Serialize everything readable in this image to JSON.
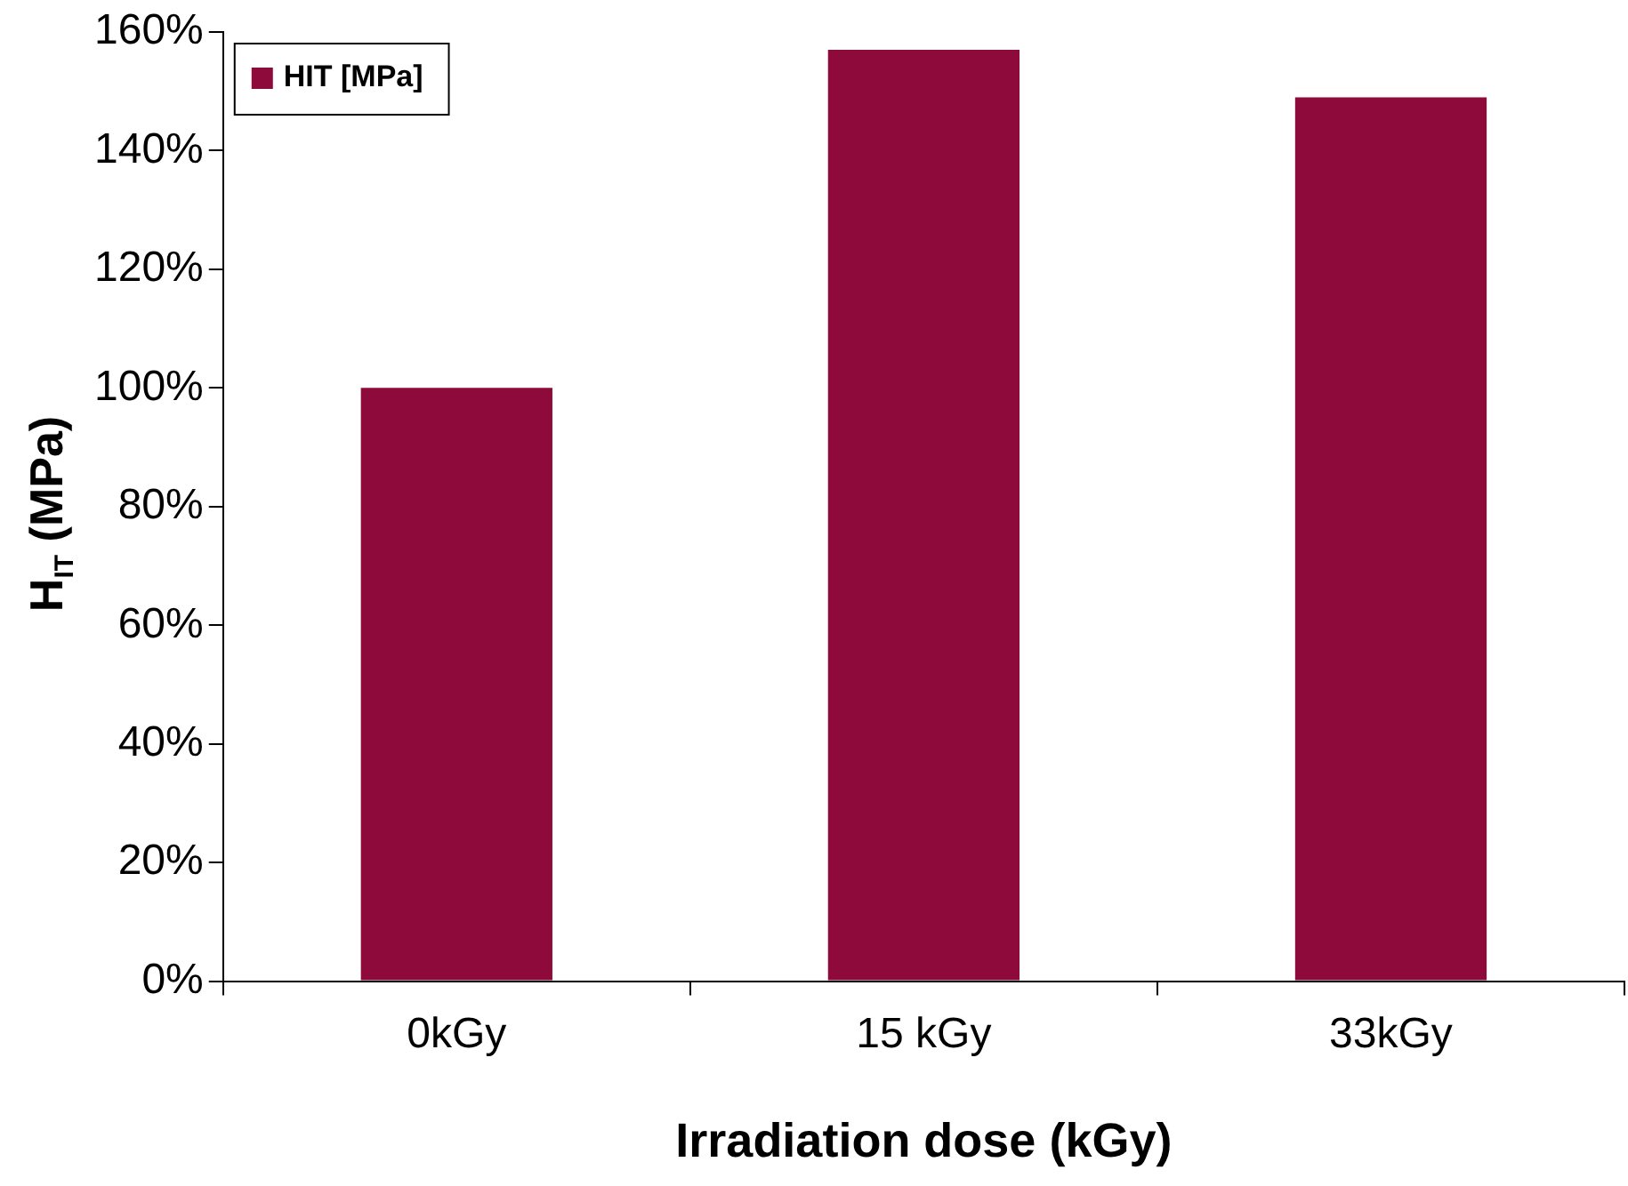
{
  "chart_data": {
    "type": "bar",
    "categories": [
      "0kGy",
      "15 kGy",
      "33kGy"
    ],
    "series": [
      {
        "name": "HIT [MPa]",
        "color": "#8e0a3a",
        "values": [
          100,
          157,
          149
        ]
      }
    ],
    "xlabel": "Irradiation dose (kGy)",
    "ylabel": "H$_{IT}$ (MPa)",
    "ylim": [
      0,
      160
    ],
    "yticks": [
      {
        "value": 0,
        "label": "0%"
      },
      {
        "value": 20,
        "label": "20%"
      },
      {
        "value": 40,
        "label": "40%"
      },
      {
        "value": 60,
        "label": "60%"
      },
      {
        "value": 80,
        "label": "80%"
      },
      {
        "value": 100,
        "label": "100%"
      },
      {
        "value": 120,
        "label": "120%"
      },
      {
        "value": 140,
        "label": "140%"
      },
      {
        "value": 160,
        "label": "160%"
      }
    ],
    "legend": "top left"
  }
}
